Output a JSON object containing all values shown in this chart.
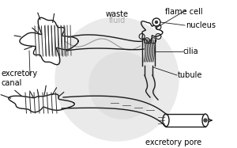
{
  "bg_color": "#ffffff",
  "watermark_color": "#e8e8e8",
  "line_color": "#1a1a1a",
  "label_color": "#000000",
  "fluid_label_color": "#aaaaaa",
  "labels": {
    "flame_cell": "flame cell",
    "nucleus": "nucleus",
    "cilia": "cilia",
    "tubule": "tubule",
    "waste": "waste",
    "fluid": "fluid",
    "excretory_canal": "excretory\ncanal",
    "excretory_pore": "excretory pore"
  },
  "figsize": [
    3.0,
    1.87
  ],
  "dpi": 100
}
